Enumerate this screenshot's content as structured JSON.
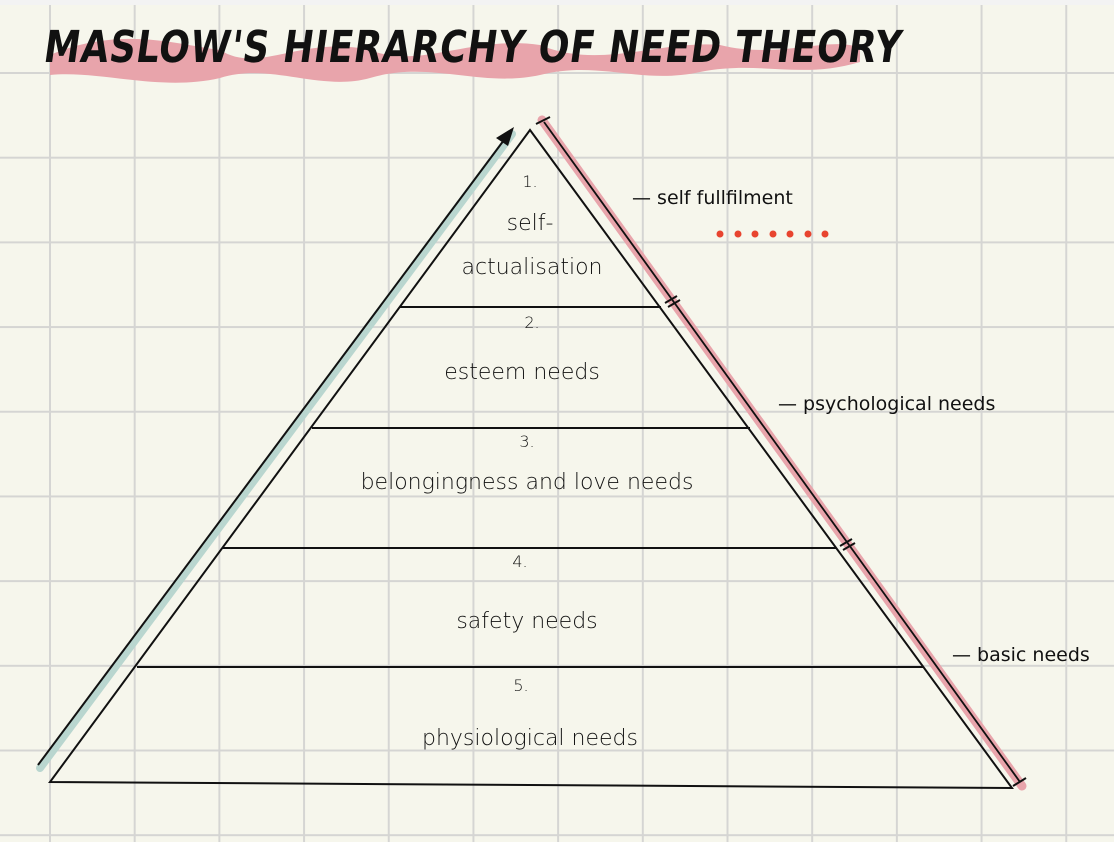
{
  "title": "MASLOW'S HIERARCHY OF NEED THEORY",
  "colors": {
    "highlight": "#e8a4ab",
    "arrow_shadow": "#b9d6cf",
    "dots": "#e8442f",
    "ink": "#111111",
    "paper": "#f6f6ec",
    "grid": "#d5d5d3"
  },
  "levels": [
    {
      "number": "1.",
      "label_line1": "self-",
      "label_line2": "actualisation"
    },
    {
      "number": "2.",
      "label": "esteem needs"
    },
    {
      "number": "3.",
      "label": "belongingness and love needs"
    },
    {
      "number": "4.",
      "label": "safety needs"
    },
    {
      "number": "5.",
      "label": "physiological needs"
    }
  ],
  "groups": [
    {
      "label": "— self fullfilment"
    },
    {
      "label": "— psychological needs"
    },
    {
      "label": "— basic needs"
    }
  ]
}
